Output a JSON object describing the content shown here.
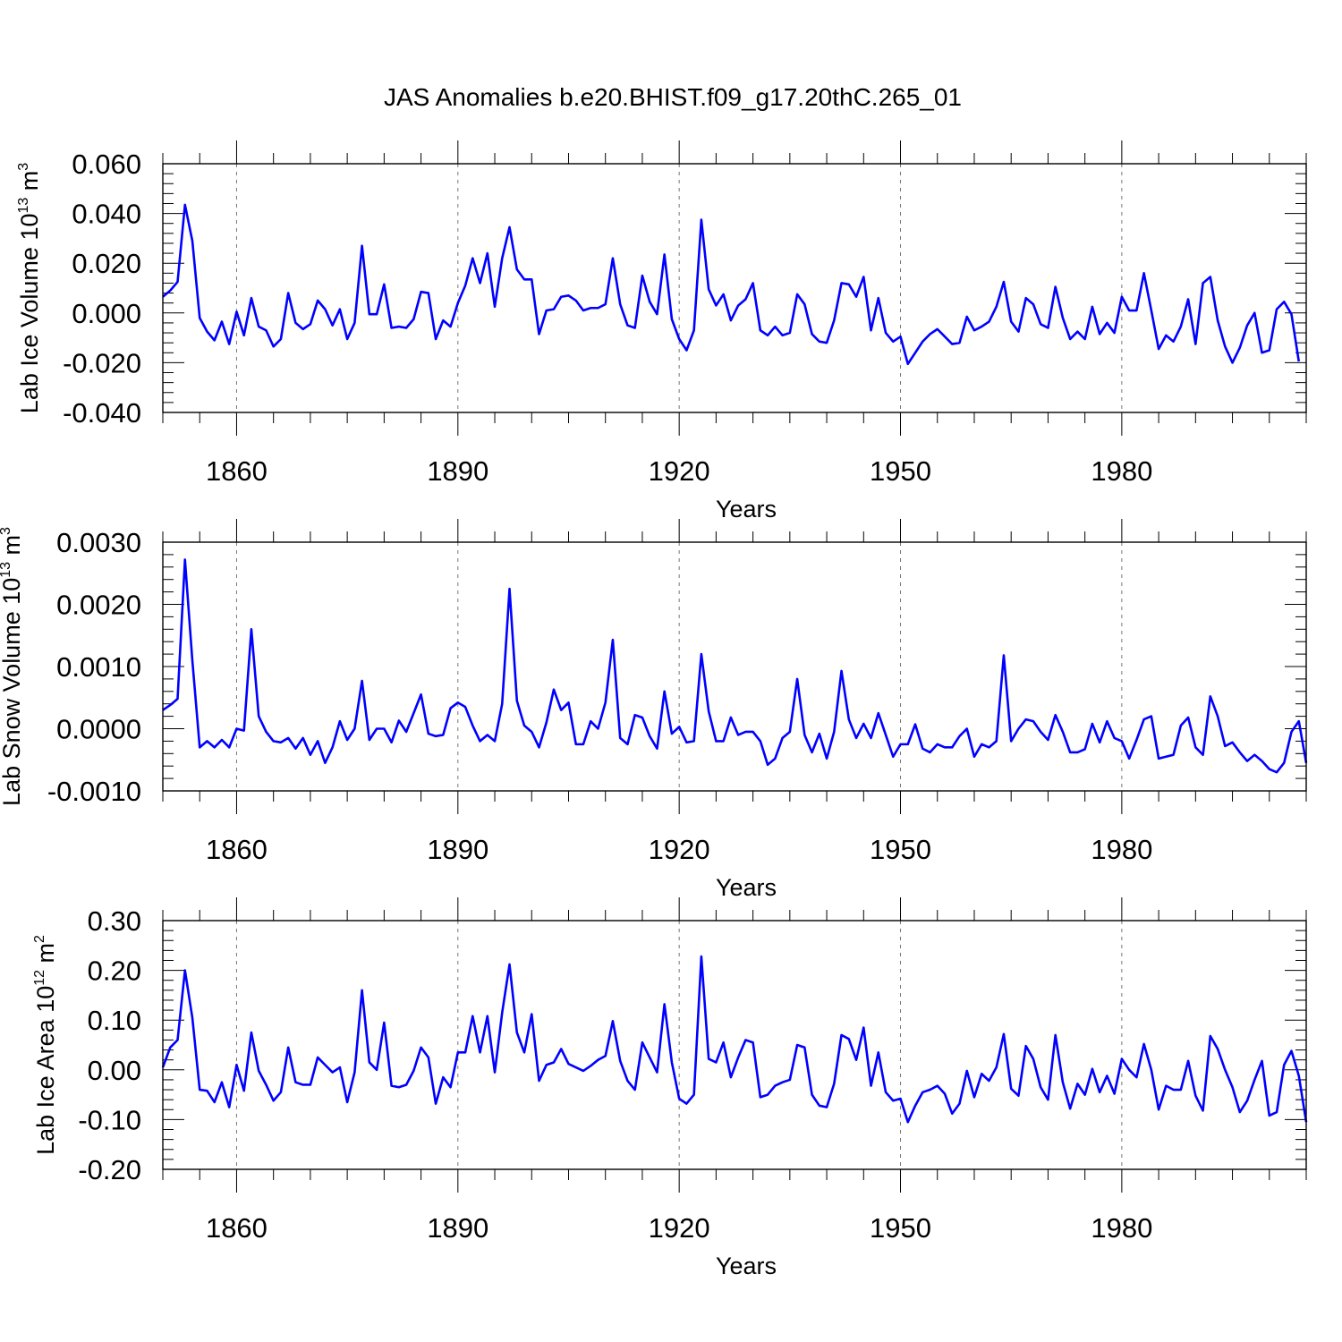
{
  "title": "JAS Anomalies b.e20.BHIST.f09_g17.20thC.265_01",
  "line_color": "#0000ff",
  "chart_data": [
    {
      "type": "line",
      "ylabel_main": "Lab Ice Volume 10",
      "ylabel_exp": "13",
      "ylabel_unit": "m",
      "ylabel_unit_exp": "3",
      "xlabel": "Years",
      "xlim": [
        1850,
        2005
      ],
      "ylim": [
        -0.04,
        0.06
      ],
      "yticks": [
        -0.04,
        -0.02,
        0.0,
        0.02,
        0.04,
        0.06
      ],
      "ytick_labels": [
        "-0.040",
        "-0.020",
        "0.000",
        "0.020",
        "0.040",
        "0.060"
      ],
      "xticks": [
        1860,
        1890,
        1920,
        1950,
        1980
      ],
      "xtick_labels": [
        "1860",
        "1890",
        "1920",
        "1950",
        "1980"
      ],
      "x_start": 1850,
      "values": [
        0.0065,
        0.009,
        0.0125,
        0.0435,
        0.029,
        -0.002,
        -0.0075,
        -0.011,
        -0.0035,
        -0.0125,
        0.0005,
        -0.009,
        0.006,
        -0.0055,
        -0.007,
        -0.0135,
        -0.0105,
        0.008,
        -0.004,
        -0.0065,
        -0.0045,
        0.005,
        0.0015,
        -0.005,
        0.0015,
        -0.0105,
        -0.004,
        0.027,
        -0.0005,
        -0.0005,
        0.0115,
        -0.006,
        -0.0055,
        -0.006,
        -0.0025,
        0.0085,
        0.008,
        -0.0105,
        -0.003,
        -0.0055,
        0.004,
        0.011,
        0.022,
        0.012,
        0.024,
        0.0025,
        0.022,
        0.0345,
        0.0175,
        0.0135,
        0.0135,
        -0.0085,
        0.001,
        0.0015,
        0.0065,
        0.007,
        0.005,
        0.001,
        0.002,
        0.002,
        0.0035,
        0.022,
        0.0035,
        -0.005,
        -0.006,
        0.015,
        0.0045,
        -0.0005,
        0.0235,
        -0.0025,
        -0.0105,
        -0.015,
        -0.007,
        0.0375,
        0.0095,
        0.003,
        0.0075,
        -0.003,
        0.003,
        0.0055,
        0.012,
        -0.007,
        -0.009,
        -0.0055,
        -0.009,
        -0.008,
        0.0075,
        0.0035,
        -0.0085,
        -0.0115,
        -0.012,
        -0.003,
        0.012,
        0.0115,
        0.0065,
        0.0145,
        -0.007,
        0.006,
        -0.008,
        -0.0115,
        -0.0095,
        -0.0205,
        -0.016,
        -0.0115,
        -0.0085,
        -0.0065,
        -0.0095,
        -0.0125,
        -0.012,
        -0.0015,
        -0.007,
        -0.0055,
        -0.0035,
        0.0025,
        0.0125,
        -0.0035,
        -0.0075,
        0.006,
        0.0035,
        -0.0045,
        -0.006,
        0.0105,
        -0.002,
        -0.0105,
        -0.0075,
        -0.0105,
        0.0025,
        -0.0085,
        -0.004,
        -0.008,
        0.0065,
        0.001,
        0.001,
        0.016,
        0.001,
        -0.0145,
        -0.009,
        -0.0115,
        -0.0055,
        0.0055,
        -0.0125,
        0.012,
        0.0145,
        -0.003,
        -0.0135,
        -0.02,
        -0.014,
        -0.005,
        0.0,
        -0.016,
        -0.015,
        0.0015,
        0.0045,
        -0.0005,
        -0.0195
      ]
    },
    {
      "type": "line",
      "ylabel_main": "Lab Snow Volume 10",
      "ylabel_exp": "13",
      "ylabel_unit": "m",
      "ylabel_unit_exp": "3",
      "xlabel": "Years",
      "xlim": [
        1850,
        2005
      ],
      "ylim": [
        -0.001,
        0.003
      ],
      "yticks": [
        -0.001,
        0.0,
        0.001,
        0.002,
        0.003
      ],
      "ytick_labels": [
        "-0.0010",
        "0.0000",
        "0.0010",
        "0.0020",
        "0.0030"
      ],
      "xticks": [
        1860,
        1890,
        1920,
        1950,
        1980
      ],
      "xtick_labels": [
        "1860",
        "1890",
        "1920",
        "1950",
        "1980"
      ],
      "x_start": 1850,
      "values": [
        0.0003,
        0.00038,
        0.00048,
        0.00272,
        0.0011,
        -0.0003,
        -0.0002,
        -0.0003,
        -0.00018,
        -0.0003,
        0.0,
        -3e-05,
        0.0016,
        0.0002,
        -5e-05,
        -0.0002,
        -0.00022,
        -0.00015,
        -0.00032,
        -0.00015,
        -0.00042,
        -0.0002,
        -0.00055,
        -0.0003,
        0.00012,
        -0.00018,
        0.0,
        0.00077,
        -0.00018,
        0.0,
        0.0,
        -0.00022,
        0.00013,
        -5e-05,
        0.00025,
        0.00055,
        -8e-05,
        -0.00012,
        -0.0001,
        0.00033,
        0.00042,
        0.00035,
        5e-05,
        -0.0002,
        -0.0001,
        -0.0002,
        0.0004,
        0.00225,
        0.00045,
        5e-05,
        -5e-05,
        -0.0003,
        0.0001,
        0.00063,
        0.0003,
        0.00042,
        -0.00025,
        -0.00025,
        0.00012,
        0.0,
        0.00042,
        0.00143,
        -0.00015,
        -0.00025,
        0.00022,
        0.00018,
        -0.00012,
        -0.00032,
        0.0006,
        -8e-05,
        3e-05,
        -0.00022,
        -0.0002,
        0.0012,
        0.00028,
        -0.0002,
        -0.0002,
        0.00018,
        -0.0001,
        -5e-05,
        -5e-05,
        -0.0002,
        -0.00058,
        -0.00048,
        -0.00015,
        -5e-05,
        0.0008,
        -0.0001,
        -0.00038,
        -8e-05,
        -0.00048,
        -5e-05,
        0.00093,
        0.00015,
        -0.00015,
        8e-05,
        -0.00015,
        0.00025,
        -0.0001,
        -0.00045,
        -0.00025,
        -0.00025,
        7e-05,
        -0.00032,
        -0.00038,
        -0.00025,
        -0.0003,
        -0.0003,
        -0.00012,
        0.0,
        -0.00045,
        -0.00025,
        -0.0003,
        -0.0002,
        0.00118,
        -0.0002,
        0.0,
        0.00015,
        0.00012,
        -5e-05,
        -0.00018,
        0.00022,
        -5e-05,
        -0.00038,
        -0.00038,
        -0.00033,
        8e-05,
        -0.00022,
        0.00012,
        -0.00015,
        -0.0002,
        -0.00048,
        -0.00018,
        0.00015,
        0.0002,
        -0.00048,
        -0.00045,
        -0.00042,
        5e-05,
        0.00018,
        -0.0003,
        -0.00042,
        0.00052,
        0.0002,
        -0.00028,
        -0.00022,
        -0.00038,
        -0.00052,
        -0.00042,
        -0.00052,
        -0.00065,
        -0.0007,
        -0.00055,
        -5e-05,
        0.00012,
        -0.00055
      ]
    },
    {
      "type": "line",
      "ylabel_main": "Lab Ice Area 10",
      "ylabel_exp": "12",
      "ylabel_unit": "m",
      "ylabel_unit_exp": "2",
      "xlabel": "Years",
      "xlim": [
        1850,
        2005
      ],
      "ylim": [
        -0.2,
        0.3
      ],
      "yticks": [
        -0.2,
        -0.1,
        0.0,
        0.1,
        0.2,
        0.3
      ],
      "ytick_labels": [
        "-0.20",
        "-0.10",
        "0.00",
        "0.10",
        "0.20",
        "0.30"
      ],
      "xticks": [
        1860,
        1890,
        1920,
        1950,
        1980
      ],
      "xtick_labels": [
        "1860",
        "1890",
        "1920",
        "1950",
        "1980"
      ],
      "x_start": 1850,
      "values": [
        0.005,
        0.045,
        0.06,
        0.2,
        0.105,
        -0.04,
        -0.042,
        -0.065,
        -0.025,
        -0.075,
        0.01,
        -0.042,
        0.075,
        -0.002,
        -0.03,
        -0.062,
        -0.045,
        0.045,
        -0.025,
        -0.03,
        -0.03,
        0.025,
        0.01,
        -0.005,
        0.005,
        -0.065,
        -0.005,
        0.16,
        0.015,
        0.0,
        0.095,
        -0.032,
        -0.035,
        -0.03,
        -0.002,
        0.045,
        0.025,
        -0.068,
        -0.015,
        -0.035,
        0.035,
        0.035,
        0.108,
        0.035,
        0.108,
        -0.005,
        0.115,
        0.212,
        0.075,
        0.035,
        0.112,
        -0.022,
        0.01,
        0.015,
        0.042,
        0.012,
        0.005,
        -0.002,
        0.008,
        0.02,
        0.028,
        0.098,
        0.018,
        -0.022,
        -0.04,
        0.055,
        0.025,
        -0.005,
        0.132,
        0.015,
        -0.058,
        -0.068,
        -0.05,
        0.228,
        0.022,
        0.015,
        0.055,
        -0.015,
        0.025,
        0.06,
        0.055,
        -0.055,
        -0.05,
        -0.032,
        -0.025,
        -0.02,
        0.05,
        0.045,
        -0.05,
        -0.072,
        -0.075,
        -0.028,
        0.07,
        0.062,
        0.02,
        0.085,
        -0.032,
        0.035,
        -0.045,
        -0.062,
        -0.058,
        -0.105,
        -0.072,
        -0.045,
        -0.04,
        -0.032,
        -0.048,
        -0.088,
        -0.068,
        -0.002,
        -0.055,
        -0.008,
        -0.022,
        0.005,
        0.072,
        -0.038,
        -0.052,
        0.048,
        0.022,
        -0.035,
        -0.06,
        0.07,
        -0.025,
        -0.078,
        -0.028,
        -0.05,
        0.002,
        -0.045,
        -0.012,
        -0.048,
        0.022,
        0.0,
        -0.015,
        0.052,
        0.0,
        -0.08,
        -0.032,
        -0.04,
        -0.04,
        0.018,
        -0.052,
        -0.082,
        0.068,
        0.042,
        0.0,
        -0.035,
        -0.085,
        -0.062,
        -0.02,
        0.018,
        -0.092,
        -0.085,
        0.01,
        0.038,
        -0.012,
        -0.105
      ]
    }
  ]
}
